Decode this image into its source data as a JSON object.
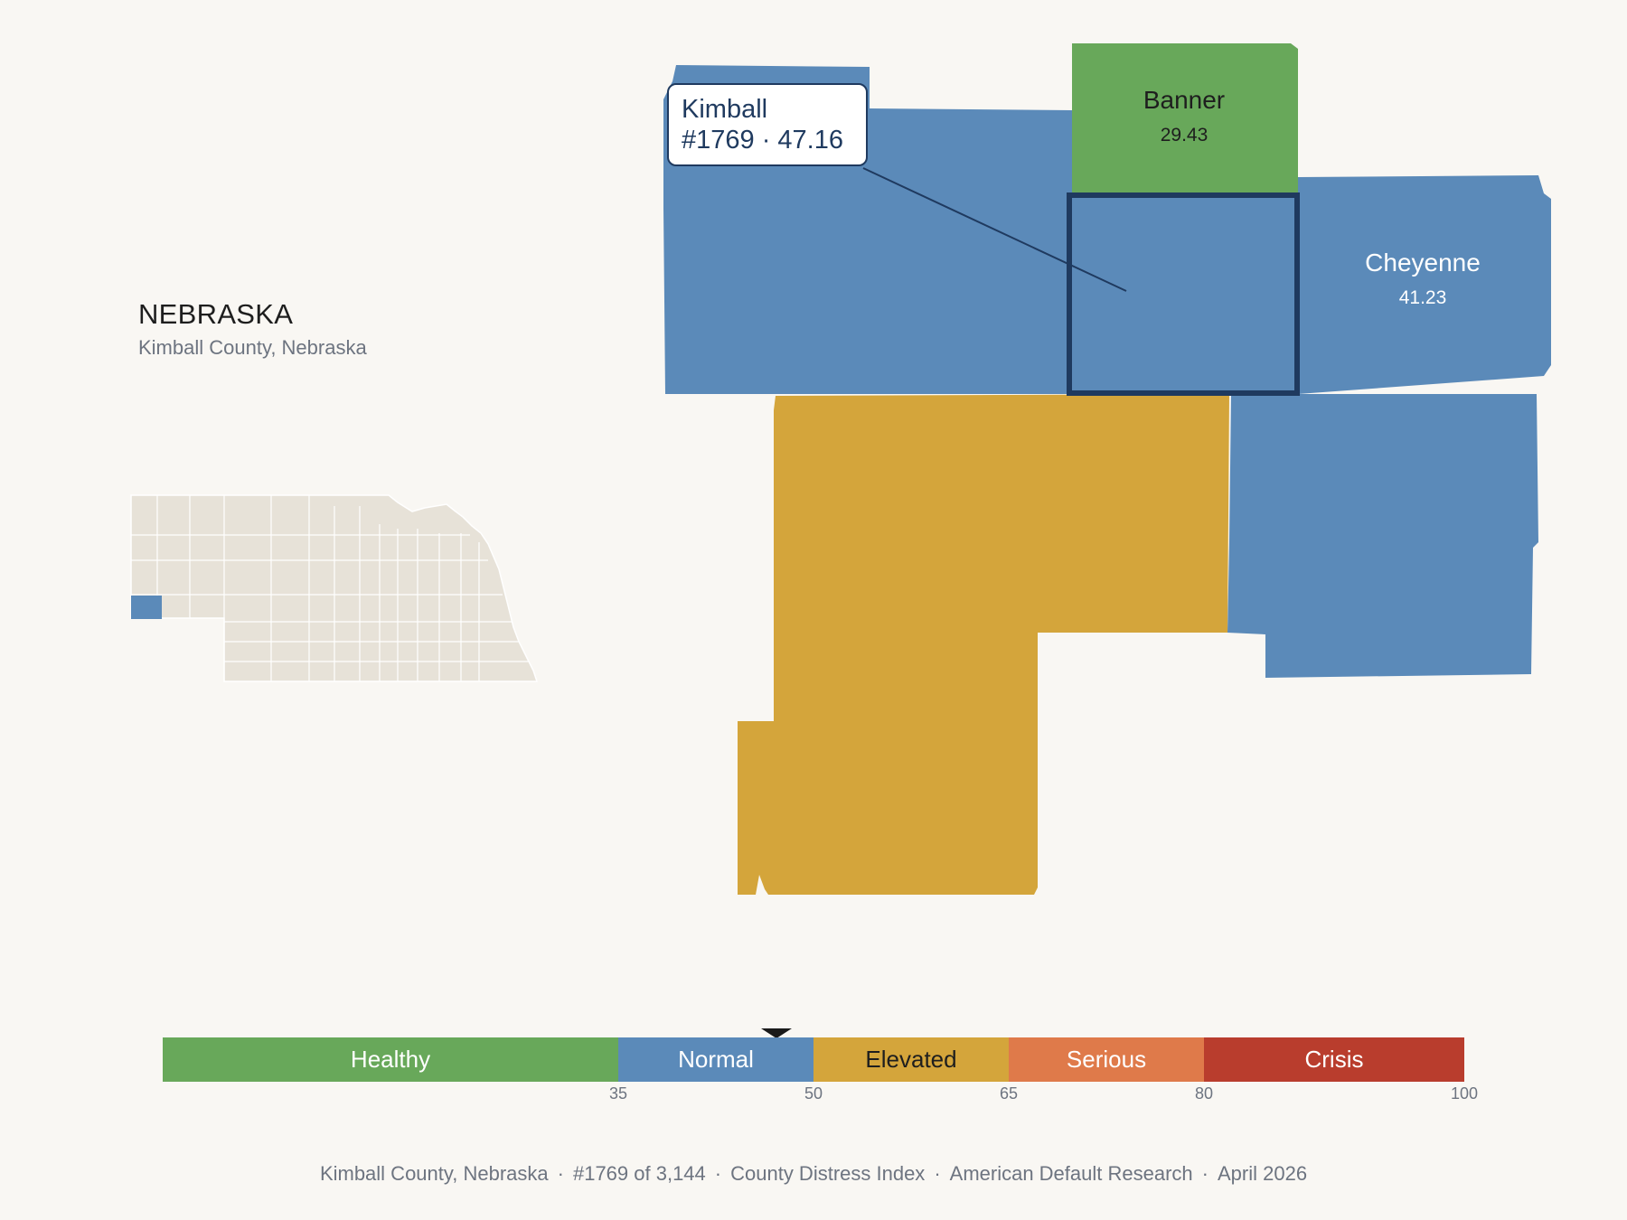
{
  "state_title": "NEBRASKA",
  "state_subtitle": "Kimball County, Nebraska",
  "colors": {
    "healthy": "#68a85a",
    "normal": "#5b8ab9",
    "elevated": "#d4a53b",
    "serious": "#df7a4a",
    "crisis": "#b93d2d",
    "highlight_outline": "#1f3a5f",
    "inset_fill": "#e7e2d8",
    "background": "#f9f7f3"
  },
  "callout": {
    "name": "Kimball",
    "detail": "#1769 · 47.16"
  },
  "counties": [
    {
      "name": "Banner",
      "value": "29.43",
      "category": "healthy"
    },
    {
      "name": "Kimball",
      "value": "47.16",
      "category": "normal",
      "rank": "#1769",
      "selected": true
    },
    {
      "name": "Cheyenne",
      "value": "41.23",
      "category": "normal"
    },
    {
      "name": "",
      "value": "",
      "category": "normal"
    },
    {
      "name": "",
      "value": "",
      "category": "elevated"
    },
    {
      "name": "",
      "value": "",
      "category": "normal"
    }
  ],
  "legend": {
    "segments": [
      {
        "label": "Healthy",
        "from": 0,
        "to": 35,
        "category": "healthy"
      },
      {
        "label": "Normal",
        "from": 35,
        "to": 50,
        "category": "normal"
      },
      {
        "label": "Elevated",
        "from": 50,
        "to": 65,
        "category": "elevated"
      },
      {
        "label": "Serious",
        "from": 65,
        "to": 80,
        "category": "serious"
      },
      {
        "label": "Crisis",
        "from": 80,
        "to": 100,
        "category": "crisis"
      }
    ],
    "ticks": [
      "35",
      "50",
      "65",
      "80",
      "100"
    ],
    "marker_value": 47.16
  },
  "footer": {
    "items": [
      "Kimball County, Nebraska",
      "#1769 of 3,144",
      "County Distress Index",
      "American Default Research",
      "April 2026"
    ]
  }
}
